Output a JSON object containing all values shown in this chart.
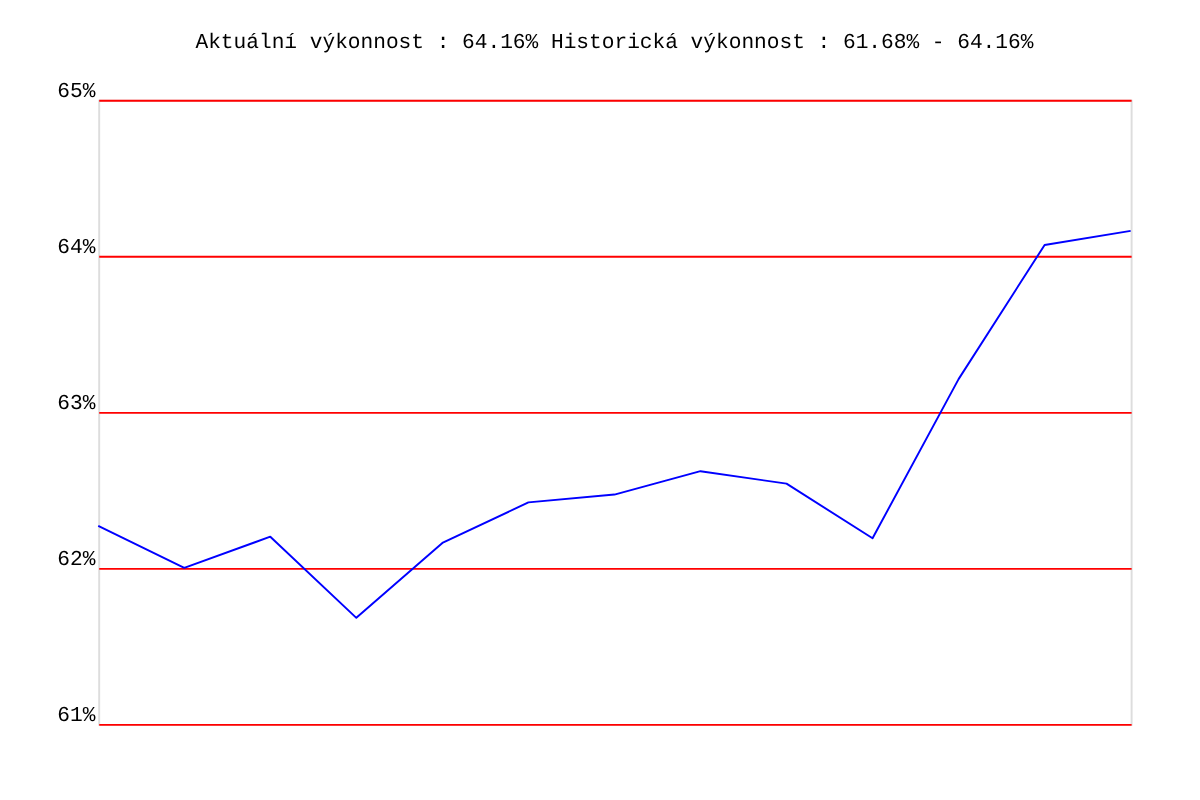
{
  "chart_data": {
    "type": "line",
    "title": "Aktuální výkonnost : 64.16%  Historická výkonnost : 61.68% - 64.16%",
    "categories": [
      null,
      null,
      null,
      null,
      null,
      null,
      null,
      null,
      null,
      null,
      null,
      null,
      null
    ],
    "series": [
      {
        "color": "#0000ff",
        "values": [
          62.27,
          62.0,
          62.2,
          61.68,
          62.16,
          62.42,
          62.47,
          62.62,
          62.54,
          62.19,
          63.21,
          64.07,
          64.16
        ]
      }
    ],
    "ylim": [
      61,
      65
    ],
    "yticks": [
      {
        "value": 61,
        "label": "61%"
      },
      {
        "value": 62,
        "label": "62%"
      },
      {
        "value": 63,
        "label": "63%"
      },
      {
        "value": 64,
        "label": "64%"
      },
      {
        "value": 65,
        "label": "65%"
      }
    ],
    "grid": "y",
    "legend": false,
    "marker": "none",
    "line_style": "solid"
  }
}
